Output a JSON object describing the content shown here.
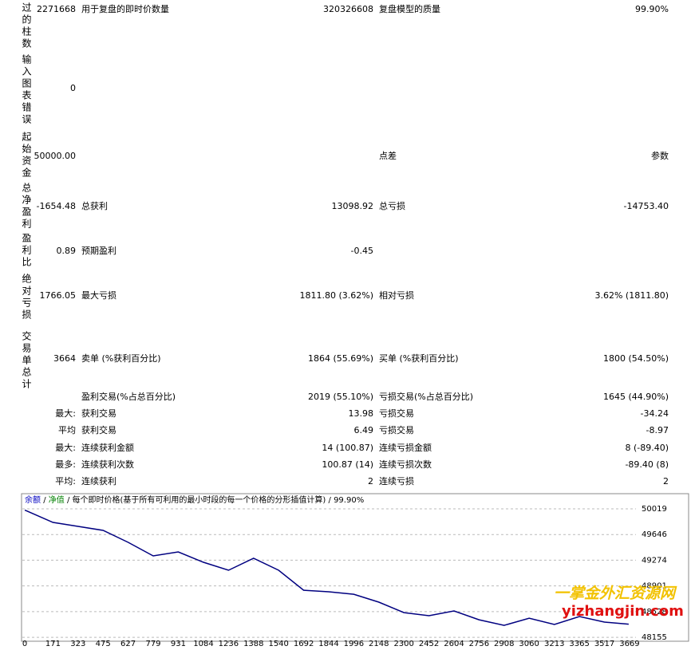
{
  "report": {
    "rows": [
      {
        "label": "过的柱数",
        "v1": "2271668",
        "l2": "用于复盘的即时价数量",
        "v2": "320326608",
        "l3": "复盘模型的质量",
        "v3": "99.90%"
      },
      {
        "label": "输入图表错误",
        "v1": "0"
      },
      {
        "label": "起始资金",
        "v1": "50000.00",
        "l3": "点差",
        "v3": "参数"
      },
      {
        "label": "总净盈利",
        "v1": "-1654.48",
        "l2": "总获利",
        "v2": "13098.92",
        "l3": "总亏损",
        "v3": "-14753.40"
      },
      {
        "label": "盈利比",
        "v1": "0.89",
        "l2": "预期盈利",
        "v2": "-0.45"
      },
      {
        "label": "绝对亏损",
        "v1": "1766.05",
        "l2": "最大亏损",
        "v2": "1811.80 (3.62%)",
        "l3": "相对亏损",
        "v3": "3.62% (1811.80)"
      },
      {
        "label": "交易单总计",
        "v1": "3664",
        "l2": "卖单 (%获利百分比)",
        "v2": "1864 (55.69%)",
        "l3": "买单 (%获利百分比)",
        "v3": "1800 (54.50%)"
      },
      {
        "l2": "盈利交易(%占总百分比)",
        "v2": "2019 (55.10%)",
        "l3": "亏损交易(%占总百分比)",
        "v3": "1645 (44.90%)"
      },
      {
        "v1": "最大:",
        "l2": "获利交易",
        "v2": "13.98",
        "l3": "亏损交易",
        "v3": "-34.24"
      },
      {
        "v1": "平均",
        "l2": "获利交易",
        "v2": "6.49",
        "l3": "亏损交易",
        "v3": "-8.97"
      },
      {
        "v1": "最大:",
        "l2": "连续获利金额",
        "v2": "14 (100.87)",
        "l3": "连续亏损金额",
        "v3": "8 (-89.40)"
      },
      {
        "v1": "最多:",
        "l2": "连续获利次数",
        "v2": "100.87 (14)",
        "l3": "连续亏损次数",
        "v3": "-89.40 (8)"
      },
      {
        "v1": "平均:",
        "l2": "连续获利",
        "v2": "2",
        "l3": "连续亏损",
        "v3": "2"
      }
    ]
  },
  "chart_data": {
    "type": "line",
    "header": [
      "余额",
      "/",
      "净值",
      "/",
      "每个即时价格(基于所有可利用的最小时段的每一个价格的分形插值计算)",
      "/",
      "99.90%"
    ],
    "x": [
      0,
      171,
      323,
      475,
      627,
      779,
      931,
      1084,
      1236,
      1388,
      1540,
      1692,
      1844,
      1996,
      2148,
      2300,
      2452,
      2604,
      2756,
      2908,
      3060,
      3213,
      3365,
      3517,
      3664
    ],
    "values": [
      50000,
      49822,
      49764,
      49706,
      49533,
      49336,
      49394,
      49244,
      49128,
      49302,
      49128,
      48838,
      48815,
      48780,
      48665,
      48514,
      48468,
      48538,
      48410,
      48329,
      48433,
      48341,
      48457,
      48376,
      48346
    ],
    "color": "#000080",
    "xlim": [
      -15,
      3708
    ],
    "ylim": [
      48110,
      50215
    ],
    "xticks": [
      0,
      171,
      323,
      475,
      627,
      779,
      931,
      1084,
      1236,
      1388,
      1540,
      1692,
      1844,
      1996,
      2148,
      2300,
      2452,
      2604,
      2756,
      2908,
      3060,
      3213,
      3365,
      3517,
      3669
    ],
    "yticks": [
      50019,
      49646,
      49274,
      48901,
      48528,
      48155
    ],
    "grid": true
  },
  "watermark": {
    "line1": "一掌金外汇资源网",
    "line2": "yizhangjin.com"
  }
}
